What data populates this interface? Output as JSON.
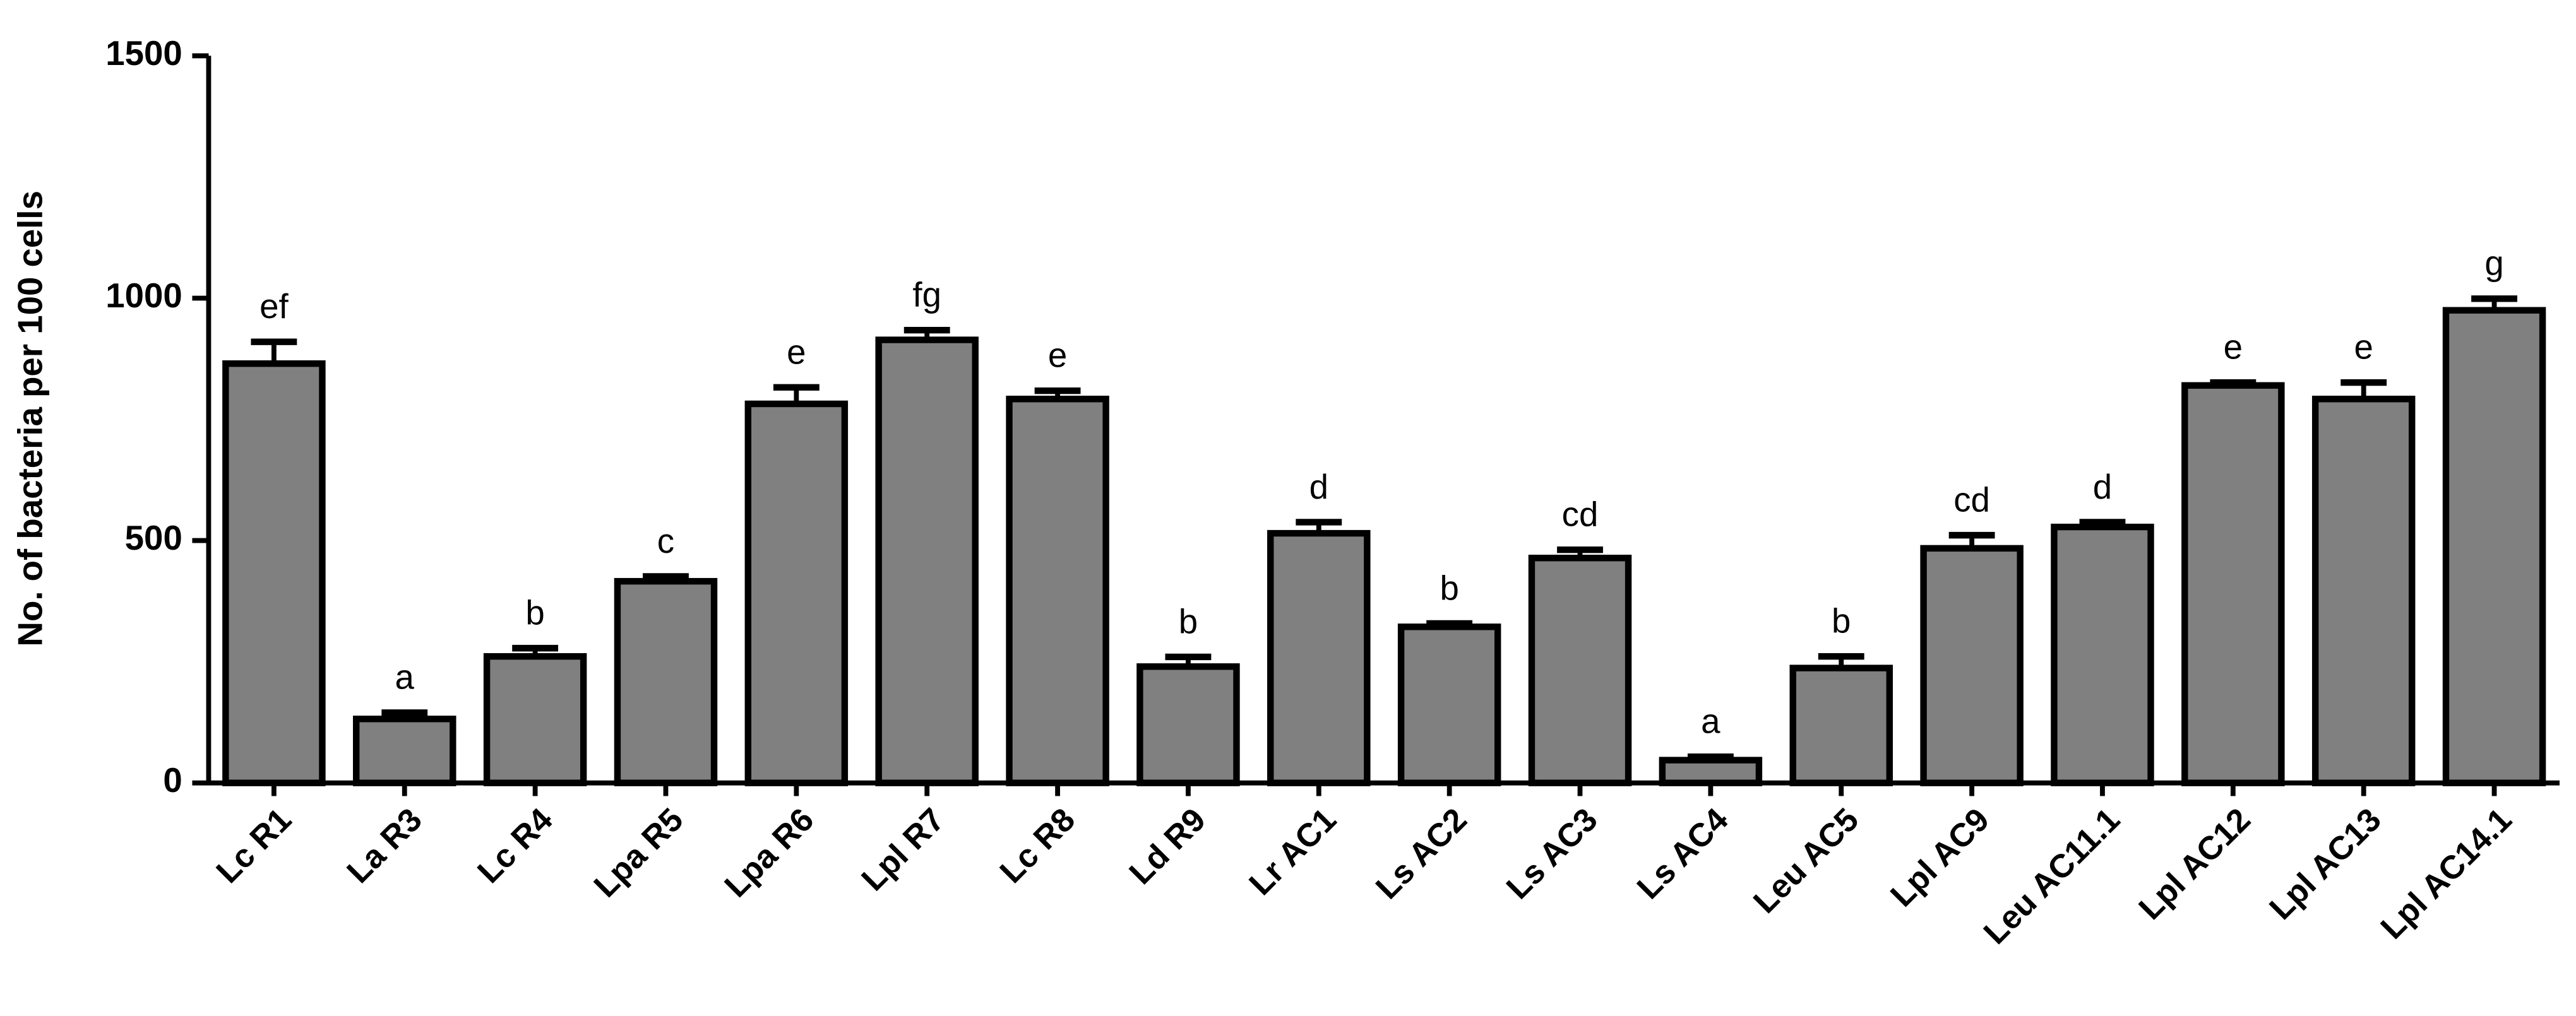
{
  "chart_data": {
    "type": "bar",
    "y_label": "No. of bacteria per 100 cells",
    "categories": [
      "Lc R1",
      "La R3",
      "Lc R4",
      "Lpa R5",
      "Lpa R6",
      "Lpl R7",
      "Lc R8",
      "Ld R9",
      "Lr AC1",
      "Ls AC2",
      "Ls AC3",
      "Ls AC4",
      "Leu AC5",
      "Lpl AC9",
      "Leu AC11.1",
      "Lpl AC12",
      "Lpl AC13",
      "Lpl AC14.1"
    ],
    "values": [
      865,
      132,
      261,
      416,
      782,
      914,
      792,
      240,
      515,
      322,
      464,
      47,
      237,
      484,
      528,
      820,
      792,
      975
    ],
    "errors": [
      45,
      13,
      17,
      10,
      34,
      20,
      17,
      20,
      23,
      7,
      17,
      7,
      24,
      27,
      10,
      6,
      34,
      24
    ],
    "annotations": [
      "ef",
      "a",
      "b",
      "c",
      "e",
      "fg",
      "e",
      "b",
      "d",
      "b",
      "cd",
      "a",
      "b",
      "cd",
      "d",
      "e",
      "e",
      "g"
    ],
    "color": "#808080",
    "ylim": [
      0,
      1500
    ],
    "yticks": [
      0,
      500,
      1000,
      1500
    ],
    "grid": false
  }
}
